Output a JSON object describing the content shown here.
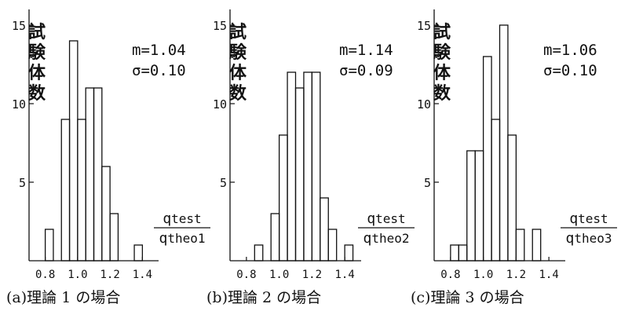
{
  "chart_data": [
    {
      "type": "bar",
      "ylabel": "試験体数",
      "xlabel_num": "q",
      "xlabel_num_sub": "test",
      "xlabel_den": "q",
      "xlabel_den_sub": "theo1",
      "stats": [
        "m=1.04",
        "σ=0.10"
      ],
      "caption": "(a)理論 1 の場合",
      "x_ticks": [
        "0.8",
        "1.0",
        "1.2",
        "1.4"
      ],
      "x_tick_values": [
        0.8,
        1.0,
        1.2,
        1.4
      ],
      "y_ticks": [
        "5",
        "10",
        "15"
      ],
      "y_tick_values": [
        5,
        10,
        15
      ],
      "ylim": [
        0,
        16
      ],
      "bin_width": 0.05,
      "bins": [
        {
          "x": 0.8,
          "count": 2
        },
        {
          "x": 0.85,
          "count": 0
        },
        {
          "x": 0.9,
          "count": 9
        },
        {
          "x": 0.95,
          "count": 14
        },
        {
          "x": 1.0,
          "count": 9
        },
        {
          "x": 1.05,
          "count": 11
        },
        {
          "x": 1.1,
          "count": 11
        },
        {
          "x": 1.15,
          "count": 6
        },
        {
          "x": 1.2,
          "count": 3
        },
        {
          "x": 1.25,
          "count": 0
        },
        {
          "x": 1.3,
          "count": 0
        },
        {
          "x": 1.35,
          "count": 1
        }
      ]
    },
    {
      "type": "bar",
      "ylabel": "試験体数",
      "xlabel_num": "q",
      "xlabel_num_sub": "test",
      "xlabel_den": "q",
      "xlabel_den_sub": "theo2",
      "stats": [
        "m=1.14",
        "σ=0.09"
      ],
      "caption": "(b)理論 2 の場合",
      "x_ticks": [
        "0.8",
        "1.0",
        "1.2",
        "1.4"
      ],
      "x_tick_values": [
        0.8,
        1.0,
        1.2,
        1.4
      ],
      "y_ticks": [
        "5",
        "10",
        "15"
      ],
      "y_tick_values": [
        5,
        10,
        15
      ],
      "ylim": [
        0,
        16
      ],
      "bin_width": 0.05,
      "bins": [
        {
          "x": 0.85,
          "count": 1
        },
        {
          "x": 0.9,
          "count": 0
        },
        {
          "x": 0.95,
          "count": 3
        },
        {
          "x": 1.0,
          "count": 8
        },
        {
          "x": 1.05,
          "count": 12
        },
        {
          "x": 1.1,
          "count": 11
        },
        {
          "x": 1.15,
          "count": 12
        },
        {
          "x": 1.2,
          "count": 12
        },
        {
          "x": 1.25,
          "count": 4
        },
        {
          "x": 1.3,
          "count": 2
        },
        {
          "x": 1.35,
          "count": 0
        },
        {
          "x": 1.4,
          "count": 1
        }
      ]
    },
    {
      "type": "bar",
      "ylabel": "試験体数",
      "xlabel_num": "q",
      "xlabel_num_sub": "test",
      "xlabel_den": "q",
      "xlabel_den_sub": "theo3",
      "stats": [
        "m=1.06",
        "σ=0.10"
      ],
      "caption": "(c)理論 3 の場合",
      "x_ticks": [
        "0.8",
        "1.0",
        "1.2",
        "1.4"
      ],
      "x_tick_values": [
        0.8,
        1.0,
        1.2,
        1.4
      ],
      "y_ticks": [
        "5",
        "10",
        "15"
      ],
      "y_tick_values": [
        5,
        10,
        15
      ],
      "ylim": [
        0,
        16
      ],
      "bin_width": 0.05,
      "bins": [
        {
          "x": 0.8,
          "count": 1
        },
        {
          "x": 0.85,
          "count": 1
        },
        {
          "x": 0.9,
          "count": 7
        },
        {
          "x": 0.95,
          "count": 7
        },
        {
          "x": 1.0,
          "count": 13
        },
        {
          "x": 1.05,
          "count": 9
        },
        {
          "x": 1.1,
          "count": 15
        },
        {
          "x": 1.15,
          "count": 8
        },
        {
          "x": 1.2,
          "count": 2
        },
        {
          "x": 1.25,
          "count": 0
        },
        {
          "x": 1.3,
          "count": 2
        },
        {
          "x": 1.35,
          "count": 0
        }
      ]
    }
  ]
}
